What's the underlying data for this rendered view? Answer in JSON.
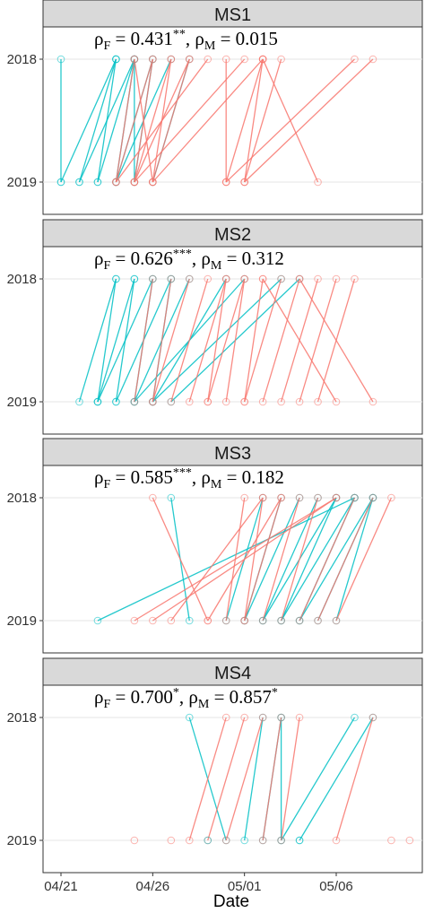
{
  "chart_data": {
    "type": "scatter",
    "xlabel": "Date",
    "x_ticks": [
      "04/21",
      "04/26",
      "05/01",
      "05/06"
    ],
    "y_ticks": [
      "2018",
      "2019"
    ],
    "xlim": [
      "04/20",
      "05/10"
    ],
    "grid": true,
    "colors": {
      "female": "#F8766D",
      "male": "#00BFC4"
    },
    "panels": [
      {
        "strip": "MS1",
        "annotation": {
          "rho_f": "0.431",
          "stars_f": "**",
          "rho_m": "0.015",
          "stars_m": ""
        },
        "links": [
          {
            "s": "m",
            "a": "04/21",
            "b": "04/21"
          },
          {
            "s": "m",
            "a": "04/24",
            "b": "04/21"
          },
          {
            "s": "m",
            "a": "04/24",
            "b": "04/22"
          },
          {
            "s": "m",
            "a": "04/24",
            "b": "04/23"
          },
          {
            "s": "m",
            "a": "04/25",
            "b": "04/22"
          },
          {
            "s": "m",
            "a": "04/25",
            "b": "04/23"
          },
          {
            "s": "m",
            "a": "04/25",
            "b": "04/24"
          },
          {
            "s": "m",
            "a": "04/25",
            "b": "04/25"
          },
          {
            "s": "m",
            "a": "04/26",
            "b": "04/24"
          },
          {
            "s": "m",
            "a": "04/26",
            "b": "04/25"
          },
          {
            "s": "m",
            "a": "04/27",
            "b": "04/24"
          },
          {
            "s": "m",
            "a": "04/28",
            "b": "04/26"
          },
          {
            "s": "f",
            "a": "04/25",
            "b": "04/24"
          },
          {
            "s": "f",
            "a": "04/25",
            "b": "04/26"
          },
          {
            "s": "f",
            "a": "04/26",
            "b": "04/24"
          },
          {
            "s": "f",
            "a": "04/26",
            "b": "04/25"
          },
          {
            "s": "f",
            "a": "04/27",
            "b": "04/25"
          },
          {
            "s": "f",
            "a": "04/27",
            "b": "04/26"
          },
          {
            "s": "f",
            "a": "04/28",
            "b": "04/25"
          },
          {
            "s": "f",
            "a": "04/28",
            "b": "04/26"
          },
          {
            "s": "f",
            "a": "04/29",
            "b": "04/24"
          },
          {
            "s": "f",
            "a": "04/30",
            "b": "04/30"
          },
          {
            "s": "f",
            "a": "05/01",
            "b": "04/25"
          },
          {
            "s": "f",
            "a": "05/02",
            "b": "04/26"
          },
          {
            "s": "f",
            "a": "05/02",
            "b": "04/30"
          },
          {
            "s": "f",
            "a": "05/02",
            "b": "05/01"
          },
          {
            "s": "f",
            "a": "05/03",
            "b": "05/01"
          },
          {
            "s": "f",
            "a": "05/02",
            "b": "05/05"
          },
          {
            "s": "f",
            "a": "05/07",
            "b": "04/30"
          },
          {
            "s": "f",
            "a": "05/08",
            "b": "05/01"
          }
        ]
      },
      {
        "strip": "MS2",
        "annotation": {
          "rho_f": "0.626",
          "stars_f": "***",
          "rho_m": "0.312",
          "stars_m": ""
        },
        "links": [
          {
            "s": "m",
            "a": "04/24",
            "b": "04/22"
          },
          {
            "s": "m",
            "a": "04/24",
            "b": "04/23"
          },
          {
            "s": "m",
            "a": "04/25",
            "b": "04/23"
          },
          {
            "s": "m",
            "a": "04/25",
            "b": "04/24"
          },
          {
            "s": "m",
            "a": "04/26",
            "b": "04/23"
          },
          {
            "s": "m",
            "a": "04/26",
            "b": "04/25"
          },
          {
            "s": "m",
            "a": "04/27",
            "b": "04/24"
          },
          {
            "s": "m",
            "a": "04/27",
            "b": "04/26"
          },
          {
            "s": "m",
            "a": "04/28",
            "b": "04/25"
          },
          {
            "s": "m",
            "a": "04/30",
            "b": "04/26"
          },
          {
            "s": "m",
            "a": "05/01",
            "b": "04/25"
          },
          {
            "s": "m",
            "a": "05/03",
            "b": "04/26"
          },
          {
            "s": "m",
            "a": "05/04",
            "b": "04/27"
          },
          {
            "s": "f",
            "a": "04/26",
            "b": "04/25"
          },
          {
            "s": "f",
            "a": "04/27",
            "b": "04/26"
          },
          {
            "s": "f",
            "a": "04/28",
            "b": "04/26"
          },
          {
            "s": "f",
            "a": "04/29",
            "b": "04/27"
          },
          {
            "s": "f",
            "a": "04/30",
            "b": "04/28"
          },
          {
            "s": "f",
            "a": "04/30",
            "b": "04/29"
          },
          {
            "s": "f",
            "a": "05/01",
            "b": "04/29"
          },
          {
            "s": "f",
            "a": "05/01",
            "b": "04/30"
          },
          {
            "s": "f",
            "a": "05/02",
            "b": "05/01"
          },
          {
            "s": "f",
            "a": "05/03",
            "b": "05/01"
          },
          {
            "s": "f",
            "a": "05/04",
            "b": "05/02"
          },
          {
            "s": "f",
            "a": "05/05",
            "b": "05/03"
          },
          {
            "s": "f",
            "a": "05/06",
            "b": "05/04"
          },
          {
            "s": "f",
            "a": "05/07",
            "b": "05/05"
          },
          {
            "s": "f",
            "a": "05/02",
            "b": "05/06"
          },
          {
            "s": "f",
            "a": "05/04",
            "b": "05/08"
          }
        ]
      },
      {
        "strip": "MS3",
        "annotation": {
          "rho_f": "0.585",
          "stars_f": "***",
          "rho_m": "0.182",
          "stars_m": ""
        },
        "links": [
          {
            "s": "m",
            "a": "05/07",
            "b": "04/23"
          },
          {
            "s": "m",
            "a": "04/27",
            "b": "04/28"
          },
          {
            "s": "m",
            "a": "05/02",
            "b": "04/30"
          },
          {
            "s": "m",
            "a": "05/03",
            "b": "05/01"
          },
          {
            "s": "m",
            "a": "05/04",
            "b": "05/01"
          },
          {
            "s": "m",
            "a": "05/05",
            "b": "05/02"
          },
          {
            "s": "m",
            "a": "05/06",
            "b": "05/02"
          },
          {
            "s": "m",
            "a": "05/06",
            "b": "05/03"
          },
          {
            "s": "m",
            "a": "05/07",
            "b": "05/03"
          },
          {
            "s": "m",
            "a": "05/07",
            "b": "05/04"
          },
          {
            "s": "m",
            "a": "05/08",
            "b": "05/04"
          },
          {
            "s": "m",
            "a": "05/08",
            "b": "05/05"
          },
          {
            "s": "m",
            "a": "05/08",
            "b": "05/06"
          },
          {
            "s": "f",
            "a": "04/26",
            "b": "04/29"
          },
          {
            "s": "f",
            "a": "05/06",
            "b": "04/25"
          },
          {
            "s": "f",
            "a": "05/06",
            "b": "04/26"
          },
          {
            "s": "f",
            "a": "05/02",
            "b": "04/27"
          },
          {
            "s": "f",
            "a": "05/03",
            "b": "04/29"
          },
          {
            "s": "f",
            "a": "05/01",
            "b": "04/30"
          },
          {
            "s": "f",
            "a": "05/02",
            "b": "05/01"
          },
          {
            "s": "f",
            "a": "05/03",
            "b": "05/01"
          },
          {
            "s": "f",
            "a": "05/04",
            "b": "05/02"
          },
          {
            "s": "f",
            "a": "05/05",
            "b": "05/03"
          },
          {
            "s": "f",
            "a": "05/07",
            "b": "05/04"
          },
          {
            "s": "f",
            "a": "05/08",
            "b": "05/05"
          },
          {
            "s": "f",
            "a": "05/09",
            "b": "05/06"
          }
        ]
      },
      {
        "strip": "MS4",
        "annotation": {
          "rho_f": "0.700",
          "stars_f": "*",
          "rho_m": "0.857",
          "stars_m": "*"
        },
        "links": [
          {
            "s": "m",
            "a": "04/28",
            "b": "04/30"
          },
          {
            "s": "m",
            "a": "05/02",
            "b": "05/01"
          },
          {
            "s": "m",
            "a": "05/03",
            "b": "05/02"
          },
          {
            "s": "m",
            "a": "05/03",
            "b": "05/03"
          },
          {
            "s": "m",
            "a": "05/07",
            "b": "05/03"
          },
          {
            "s": "m",
            "a": "05/08",
            "b": "05/04"
          },
          {
            "s": "f",
            "a": "04/30",
            "b": "04/28"
          },
          {
            "s": "f",
            "a": "05/01",
            "b": "04/29"
          },
          {
            "s": "f",
            "a": "05/02",
            "b": "04/30"
          },
          {
            "s": "f",
            "a": "05/03",
            "b": "05/02"
          },
          {
            "s": "f",
            "a": "05/04",
            "b": "05/03"
          },
          {
            "s": "f",
            "a": "05/08",
            "b": "05/06"
          }
        ],
        "extra_2019_points": [
          {
            "s": "f",
            "d": "04/25"
          },
          {
            "s": "f",
            "d": "04/27"
          },
          {
            "s": "f",
            "d": "05/09"
          },
          {
            "s": "f",
            "d": "05/10"
          },
          {
            "s": "m",
            "d": "04/29"
          },
          {
            "s": "m",
            "d": "05/04"
          }
        ]
      }
    ]
  }
}
